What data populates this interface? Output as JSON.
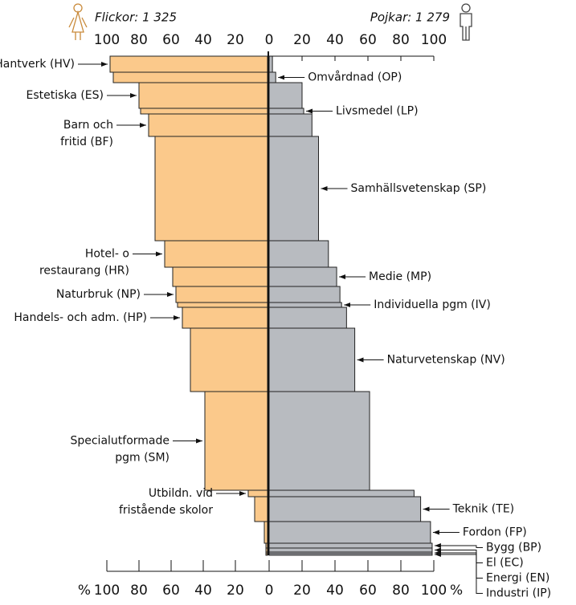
{
  "chart_data": {
    "type": "butterfly",
    "left_title": "Flickor: 1 325",
    "right_title": "Pojkar: 1 279",
    "x_unit": "%",
    "xlim": [
      0,
      100
    ],
    "xticks": [
      0,
      20,
      40,
      60,
      80,
      100
    ],
    "left_color": "#fbc98b",
    "right_color": "#b8bbc0",
    "programs": [
      {
        "label": [
          "Hantverk (HV)"
        ],
        "side": "left",
        "girls": 98,
        "boys": 2,
        "size": 20
      },
      {
        "label": [
          "Omvårdnad (OP)"
        ],
        "side": "right",
        "girls": 96,
        "boys": 4,
        "size": 13
      },
      {
        "label": [
          "Estetiska (ES)"
        ],
        "side": "left",
        "girls": 80,
        "boys": 20,
        "size": 32
      },
      {
        "label": [
          "Livsmedel (LP)"
        ],
        "side": "right",
        "girls": 79,
        "boys": 21,
        "size": 7
      },
      {
        "label": [
          "Barn och",
          "fritid (BF)"
        ],
        "side": "left",
        "girls": 74,
        "boys": 26,
        "size": 28
      },
      {
        "label": [
          "Samhällsvetenskap (SP)"
        ],
        "side": "right",
        "girls": 70,
        "boys": 30,
        "size": 130
      },
      {
        "label": [
          "Hotel- o",
          "restaurang (HR)"
        ],
        "side": "left",
        "girls": 64,
        "boys": 36,
        "size": 33
      },
      {
        "label": [
          "Medie (MP)"
        ],
        "side": "right",
        "girls": 59,
        "boys": 41,
        "size": 24
      },
      {
        "label": [
          "Naturbruk (NP)"
        ],
        "side": "left",
        "girls": 57,
        "boys": 43,
        "size": 20
      },
      {
        "label": [
          "Individuella pgm (IV)"
        ],
        "side": "right",
        "girls": 56,
        "boys": 44,
        "size": 6
      },
      {
        "label": [
          "Handels- och adm. (HP)"
        ],
        "side": "left",
        "girls": 53,
        "boys": 47,
        "size": 26
      },
      {
        "label": [
          "Naturvetenskap (NV)"
        ],
        "side": "right",
        "girls": 48,
        "boys": 52,
        "size": 79
      },
      {
        "label": [
          "Specialutformade",
          "pgm (SM)"
        ],
        "side": "left",
        "girls": 39,
        "boys": 61,
        "size": 123
      },
      {
        "label": [
          "Utbildn. vid",
          "fristående skolor"
        ],
        "side": "left",
        "girls": 12,
        "boys": 88,
        "size": 8
      },
      {
        "label": [
          "Teknik (TE)"
        ],
        "side": "right",
        "girls": 8,
        "boys": 92,
        "size": 31
      },
      {
        "label": [
          "Fordon (FP)"
        ],
        "side": "right",
        "girls": 2,
        "boys": 98,
        "size": 27
      },
      {
        "label": [
          "Bygg (BP)"
        ],
        "side": "right",
        "girls": 1,
        "boys": 99,
        "size": 6
      },
      {
        "label": [
          "El (EC)"
        ],
        "side": "right",
        "girls": 1,
        "boys": 99,
        "size": 5
      },
      {
        "label": [
          "Energi (EN)"
        ],
        "side": "right",
        "girls": 1,
        "boys": 99,
        "size": 2
      },
      {
        "label": [
          "Industri (IP)"
        ],
        "side": "right",
        "girls": 1,
        "boys": 99,
        "size": 2
      }
    ]
  }
}
